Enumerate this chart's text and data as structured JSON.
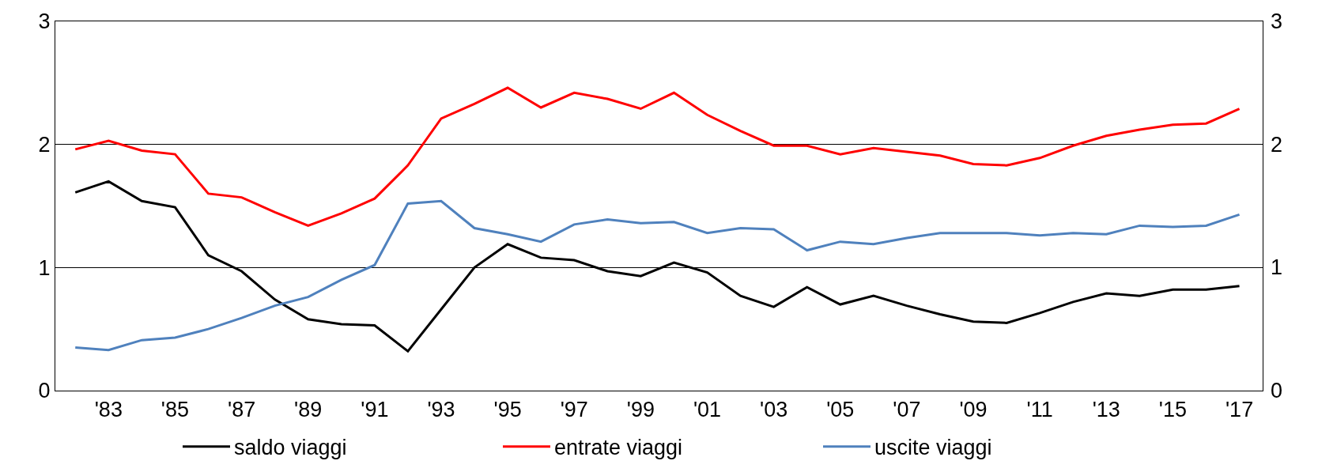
{
  "chart_data": {
    "type": "line",
    "x": [
      1982,
      1983,
      1984,
      1985,
      1986,
      1987,
      1988,
      1989,
      1990,
      1991,
      1992,
      1993,
      1994,
      1995,
      1996,
      1997,
      1998,
      1999,
      2000,
      2001,
      2002,
      2003,
      2004,
      2005,
      2006,
      2007,
      2008,
      2009,
      2010,
      2011,
      2012,
      2013,
      2014,
      2015,
      2016,
      2017
    ],
    "series": [
      {
        "name": "saldo viaggi",
        "color": "#000000",
        "values": [
          1.61,
          1.7,
          1.54,
          1.49,
          1.1,
          0.97,
          0.74,
          0.58,
          0.54,
          0.53,
          0.32,
          0.66,
          1.0,
          1.19,
          1.08,
          1.06,
          0.97,
          0.93,
          1.04,
          0.96,
          0.77,
          0.68,
          0.84,
          0.7,
          0.77,
          0.69,
          0.62,
          0.56,
          0.55,
          0.63,
          0.72,
          0.79,
          0.77,
          0.82,
          0.82,
          0.85
        ]
      },
      {
        "name": "entrate viaggi",
        "color": "#ff0000",
        "values": [
          1.96,
          2.03,
          1.95,
          1.92,
          1.6,
          1.57,
          1.45,
          1.34,
          1.44,
          1.56,
          1.83,
          2.21,
          2.33,
          2.46,
          2.3,
          2.42,
          2.37,
          2.29,
          2.42,
          2.24,
          2.11,
          1.99,
          1.99,
          1.92,
          1.97,
          1.94,
          1.91,
          1.84,
          1.83,
          1.89,
          1.99,
          2.07,
          2.12,
          2.16,
          2.17,
          2.29
        ]
      },
      {
        "name": "uscite viaggi",
        "color": "#4f81bd",
        "values": [
          0.35,
          0.33,
          0.41,
          0.43,
          0.5,
          0.59,
          0.69,
          0.76,
          0.9,
          1.02,
          1.52,
          1.54,
          1.32,
          1.27,
          1.21,
          1.35,
          1.39,
          1.36,
          1.37,
          1.28,
          1.32,
          1.31,
          1.14,
          1.21,
          1.19,
          1.24,
          1.28,
          1.28,
          1.28,
          1.26,
          1.28,
          1.27,
          1.34,
          1.33,
          1.34,
          1.43
        ]
      }
    ],
    "xlim": [
      1981.4,
      2017.7
    ],
    "xticks": [
      {
        "value": 1983,
        "label": "'83"
      },
      {
        "value": 1985,
        "label": "'85"
      },
      {
        "value": 1987,
        "label": "'87"
      },
      {
        "value": 1989,
        "label": "'89"
      },
      {
        "value": 1991,
        "label": "'91"
      },
      {
        "value": 1993,
        "label": "'93"
      },
      {
        "value": 1995,
        "label": "'95"
      },
      {
        "value": 1997,
        "label": "'97"
      },
      {
        "value": 1999,
        "label": "'99"
      },
      {
        "value": 2001,
        "label": "'01"
      },
      {
        "value": 2003,
        "label": "'03"
      },
      {
        "value": 2005,
        "label": "'05"
      },
      {
        "value": 2007,
        "label": "'07"
      },
      {
        "value": 2009,
        "label": "'09"
      },
      {
        "value": 2011,
        "label": "'11"
      },
      {
        "value": 2013,
        "label": "'13"
      },
      {
        "value": 2015,
        "label": "'15"
      },
      {
        "value": 2017,
        "label": "'17"
      }
    ],
    "ylim": [
      0,
      3
    ],
    "yticks": [
      0,
      1,
      2,
      3
    ],
    "y2lim": [
      0,
      3
    ],
    "y2ticks": [
      0,
      1,
      2,
      3
    ],
    "grid": "y",
    "legend": "bottom",
    "marker": "none",
    "line_style": "solid"
  }
}
